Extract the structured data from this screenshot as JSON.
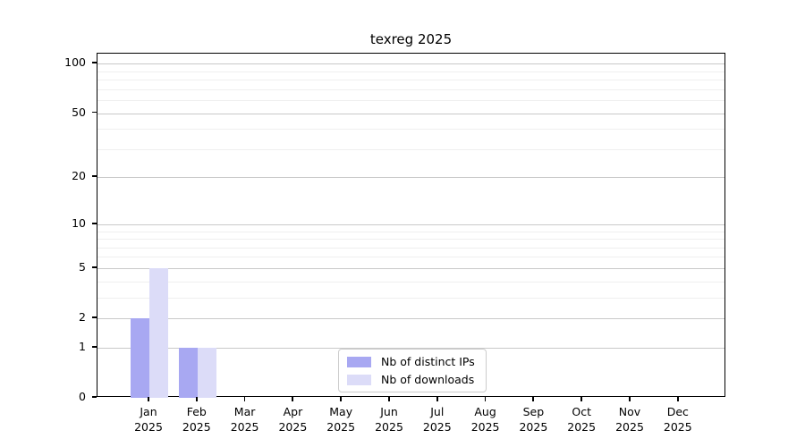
{
  "title": "texreg 2025",
  "chart_data": {
    "type": "bar",
    "title": "texreg 2025",
    "categories": [
      "Jan",
      "Feb",
      "Mar",
      "Apr",
      "May",
      "Jun",
      "Jul",
      "Aug",
      "Sep",
      "Oct",
      "Nov",
      "Dec"
    ],
    "category_year": "2025",
    "series": [
      {
        "name": "Nb of distinct IPs",
        "color": "#a8a8f2",
        "values": [
          2,
          1,
          0,
          0,
          0,
          0,
          0,
          0,
          0,
          0,
          0,
          0
        ]
      },
      {
        "name": "Nb of downloads",
        "color": "#dcdcf8",
        "values": [
          5,
          1,
          0,
          0,
          0,
          0,
          0,
          0,
          0,
          0,
          0,
          0
        ]
      }
    ],
    "xlabel": "",
    "ylabel": "",
    "yticks": [
      0,
      1,
      2,
      5,
      10,
      20,
      50,
      100
    ],
    "minor_gridlines": [
      3,
      4,
      6,
      7,
      8,
      9,
      30,
      40,
      60,
      70,
      80,
      90
    ],
    "yscale": "log1p",
    "ylim": [
      0,
      115
    ],
    "grid": "on",
    "legend_position": "inside lower center",
    "colors": {
      "grid_major": "#c9c9c9",
      "grid_minor": "#efefef",
      "axis": "#000000",
      "text": "#000000"
    }
  }
}
